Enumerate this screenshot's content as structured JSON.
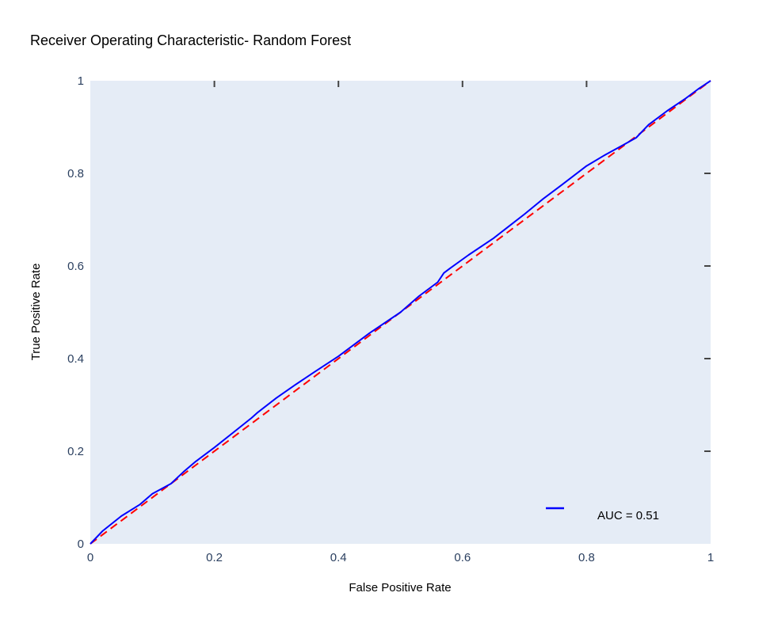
{
  "chart_data": {
    "type": "line",
    "title": "Receiver Operating Characteristic- Random Forest",
    "xlabel": "False Positive Rate",
    "ylabel": "True Positive Rate",
    "xlim": [
      0,
      1
    ],
    "ylim": [
      0,
      1
    ],
    "x_tick_labels": [
      "0",
      "0.2",
      "0.4",
      "0.6",
      "0.8",
      "1"
    ],
    "y_tick_labels": [
      "0",
      "0.2",
      "0.4",
      "0.6",
      "0.8",
      "1"
    ],
    "grid": false,
    "legend_position": "bottom-right",
    "plot_background": "#e5ecf6",
    "series": [
      {
        "name": "AUC = 0.51",
        "color": "#0000ff",
        "style": "solid",
        "x": [
          0,
          0.02,
          0.05,
          0.08,
          0.1,
          0.13,
          0.15,
          0.17,
          0.2,
          0.23,
          0.26,
          0.27,
          0.3,
          0.33,
          0.36,
          0.4,
          0.45,
          0.5,
          0.53,
          0.56,
          0.57,
          0.58,
          0.61,
          0.65,
          0.7,
          0.73,
          0.76,
          0.8,
          0.83,
          0.86,
          0.88,
          0.9,
          0.93,
          0.96,
          0.98,
          1
        ],
        "y": [
          0,
          0.028,
          0.06,
          0.085,
          0.108,
          0.13,
          0.155,
          0.178,
          0.208,
          0.24,
          0.272,
          0.284,
          0.315,
          0.343,
          0.37,
          0.405,
          0.455,
          0.5,
          0.535,
          0.565,
          0.585,
          0.595,
          0.624,
          0.66,
          0.712,
          0.745,
          0.775,
          0.816,
          0.84,
          0.862,
          0.877,
          0.905,
          0.935,
          0.962,
          0.982,
          1
        ]
      },
      {
        "name": "",
        "color": "#ff0000",
        "style": "dash",
        "x": [
          0,
          1
        ],
        "y": [
          0,
          1
        ]
      }
    ],
    "legend": [
      {
        "label": "AUC = 0.51",
        "color": "#0000ff"
      }
    ]
  }
}
